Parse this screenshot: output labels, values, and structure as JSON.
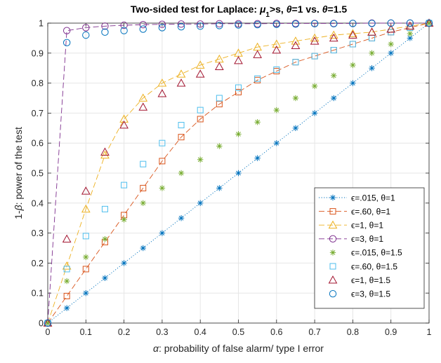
{
  "chart_data": {
    "type": "line",
    "title": {
      "prefix": "Two-sided test for Laplace: ",
      "mu": "μ",
      "mu_sub": "1",
      "after_mu": ">s, ",
      "theta1": "θ",
      "mid": "=1 vs. ",
      "theta2": "θ",
      "suffix": "=1.5"
    },
    "xlabel": {
      "symbol": "α",
      "text": ": probability of false alarm/ type I error"
    },
    "ylabel": {
      "pre": "1-",
      "symbol": "β",
      "text": ": power of the test"
    },
    "xlim": [
      0,
      1
    ],
    "ylim": [
      0,
      1
    ],
    "xticks": [
      0,
      0.1,
      0.2,
      0.3,
      0.4,
      0.5,
      0.6,
      0.7,
      0.8,
      0.9,
      1
    ],
    "xtick_labels": [
      "0",
      "0.1",
      "0.2",
      "0.3",
      "0.4",
      "0.5",
      "0.6",
      "0.7",
      "0.8",
      "0.9",
      "1"
    ],
    "yticks": [
      0,
      0.1,
      0.2,
      0.3,
      0.4,
      0.5,
      0.6,
      0.7,
      0.8,
      0.9,
      1
    ],
    "ytick_labels": [
      "0",
      "0.1",
      "0.2",
      "0.3",
      "0.4",
      "0.5",
      "0.6",
      "0.7",
      "0.8",
      "0.9",
      "1"
    ],
    "grid": true,
    "legend_position": "bottom-right",
    "x": [
      0,
      0.05,
      0.1,
      0.15,
      0.2,
      0.25,
      0.3,
      0.35,
      0.4,
      0.45,
      0.5,
      0.55,
      0.6,
      0.65,
      0.7,
      0.75,
      0.8,
      0.85,
      0.9,
      0.95,
      1
    ],
    "series": [
      {
        "name": "ϵ=.015, θ=1",
        "marker": "asterisk",
        "line": "dotted",
        "color": "#0072bd",
        "values": [
          0,
          0.05,
          0.1,
          0.15,
          0.2,
          0.25,
          0.3,
          0.35,
          0.4,
          0.45,
          0.5,
          0.55,
          0.6,
          0.65,
          0.7,
          0.75,
          0.8,
          0.85,
          0.9,
          0.95,
          1
        ]
      },
      {
        "name": "ϵ=.60, θ=1",
        "marker": "square",
        "line": "dashed",
        "color": "#d95319",
        "values": [
          0,
          0.09,
          0.18,
          0.27,
          0.36,
          0.45,
          0.54,
          0.62,
          0.68,
          0.73,
          0.77,
          0.81,
          0.84,
          0.87,
          0.89,
          0.91,
          0.93,
          0.95,
          0.97,
          0.985,
          1
        ]
      },
      {
        "name": "ϵ=1, θ=1",
        "marker": "triangle",
        "line": "dashed",
        "color": "#edb120",
        "values": [
          0,
          0.19,
          0.38,
          0.56,
          0.68,
          0.75,
          0.8,
          0.83,
          0.86,
          0.88,
          0.9,
          0.92,
          0.93,
          0.94,
          0.95,
          0.96,
          0.965,
          0.97,
          0.98,
          0.99,
          1
        ]
      },
      {
        "name": "ϵ=3, θ=1",
        "marker": "circle",
        "line": "dashed",
        "color": "#7e2f8e",
        "values": [
          0,
          0.975,
          0.985,
          0.99,
          0.993,
          0.995,
          0.996,
          0.997,
          0.997,
          0.998,
          0.998,
          0.998,
          0.999,
          0.999,
          0.999,
          0.999,
          0.999,
          1,
          1,
          1,
          1
        ]
      },
      {
        "name": "ϵ=.015, θ=1.5",
        "marker": "asterisk",
        "line": "none",
        "color": "#77ac30",
        "values": [
          0,
          0.14,
          0.22,
          0.28,
          0.345,
          0.4,
          0.45,
          0.5,
          0.545,
          0.59,
          0.63,
          0.67,
          0.71,
          0.75,
          0.79,
          0.825,
          0.86,
          0.9,
          0.93,
          0.965,
          1
        ]
      },
      {
        "name": "ϵ=.60, θ=1.5",
        "marker": "square",
        "line": "none",
        "color": "#4dbeee",
        "values": [
          0,
          0.18,
          0.29,
          0.38,
          0.46,
          0.53,
          0.6,
          0.66,
          0.71,
          0.75,
          0.785,
          0.815,
          0.845,
          0.87,
          0.89,
          0.91,
          0.93,
          0.95,
          0.97,
          0.985,
          1
        ]
      },
      {
        "name": "ϵ=1, θ=1.5",
        "marker": "triangle",
        "line": "none",
        "color": "#a2142f",
        "values": [
          0,
          0.28,
          0.44,
          0.57,
          0.66,
          0.72,
          0.765,
          0.8,
          0.83,
          0.855,
          0.875,
          0.895,
          0.91,
          0.925,
          0.94,
          0.95,
          0.96,
          0.97,
          0.98,
          0.99,
          1
        ]
      },
      {
        "name": "ϵ=3, θ=1.5",
        "marker": "circle",
        "line": "none",
        "color": "#0072bd",
        "values": [
          0,
          0.935,
          0.96,
          0.97,
          0.975,
          0.98,
          0.985,
          0.988,
          0.99,
          0.992,
          0.994,
          0.995,
          0.996,
          0.997,
          0.998,
          0.998,
          0.999,
          0.999,
          1,
          1,
          1
        ]
      }
    ]
  }
}
